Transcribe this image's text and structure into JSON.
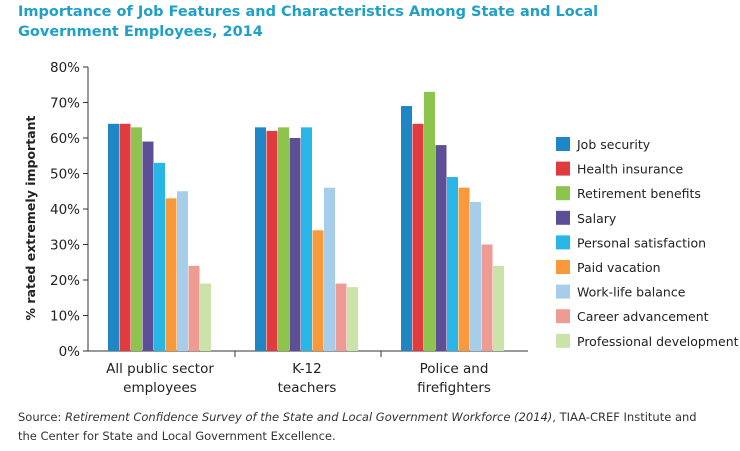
{
  "title_line1": "Importance of Job Features and Characteristics Among State and Local",
  "title_line2": "Government Employees, 2014",
  "source": {
    "prefix": "Source: ",
    "italic": "Retirement Confidence Survey of the State and Local Government Workforce (2014)",
    "rest_line1": ", TIAA-CREF Institute and",
    "line2": "the Center for State and Local Government Excellence."
  },
  "chart_data": {
    "type": "bar",
    "ylabel": "% rated extremely important",
    "ylim": [
      0,
      80
    ],
    "yticks": [
      "0%",
      "10%",
      "20%",
      "30%",
      "40%",
      "50%",
      "60%",
      "70%",
      "80%"
    ],
    "categories": [
      [
        "All public sector",
        "employees"
      ],
      [
        "K-12",
        "teachers"
      ],
      [
        "Police and",
        "firefighters"
      ]
    ],
    "legend_position": "right",
    "series": [
      {
        "name": "Job security",
        "color": "#1f86c6",
        "values": [
          64,
          63,
          69
        ]
      },
      {
        "name": "Health insurance",
        "color": "#e03b3f",
        "values": [
          64,
          62,
          64
        ]
      },
      {
        "name": "Retirement benefits",
        "color": "#8cc44e",
        "values": [
          63,
          63,
          73
        ]
      },
      {
        "name": "Salary",
        "color": "#5d4f96",
        "values": [
          59,
          60,
          58
        ]
      },
      {
        "name": "Personal satisfaction",
        "color": "#27b6e6",
        "values": [
          53,
          63,
          49
        ]
      },
      {
        "name": "Paid vacation",
        "color": "#f89a3c",
        "values": [
          43,
          34,
          46
        ]
      },
      {
        "name": "Work-life balance",
        "color": "#a6cde9",
        "values": [
          45,
          46,
          42
        ]
      },
      {
        "name": "Career advancement",
        "color": "#ee9c93",
        "values": [
          24,
          19,
          30
        ]
      },
      {
        "name": "Professional development",
        "color": "#c9e3a8",
        "values": [
          19,
          18,
          24
        ]
      }
    ]
  }
}
